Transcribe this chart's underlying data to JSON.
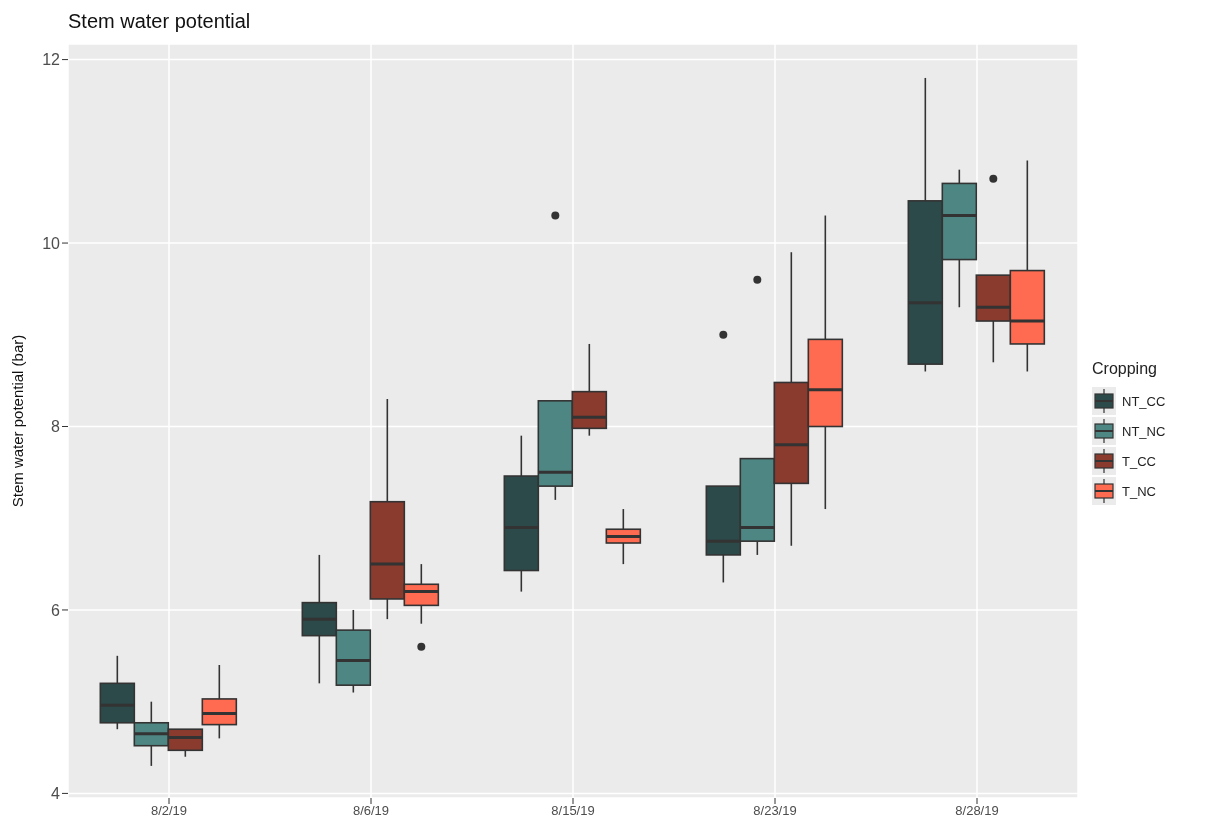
{
  "chart_data": {
    "type": "box",
    "title": "Stem water potential",
    "ylabel": "Stem water potential (bar)",
    "legend_title": "Cropping",
    "categories": [
      "8/2/19",
      "8/6/19",
      "8/15/19",
      "8/23/19",
      "8/28/19"
    ],
    "ylim": [
      3.95,
      12.17
    ],
    "yticks": [
      4,
      6,
      8,
      10,
      12
    ],
    "grid": true,
    "legend": "right",
    "series": [
      {
        "name": "NT_CC",
        "color": "#2d4a4a",
        "boxes": [
          {
            "low": 4.7,
            "q1": 4.77,
            "median": 4.96,
            "q3": 5.2,
            "high": 5.5
          },
          {
            "low": 5.2,
            "q1": 5.72,
            "median": 5.9,
            "q3": 6.08,
            "high": 6.6
          },
          {
            "low": 6.2,
            "q1": 6.43,
            "median": 6.9,
            "q3": 7.46,
            "high": 7.9
          },
          {
            "low": 6.3,
            "q1": 6.6,
            "median": 6.75,
            "q3": 7.35,
            "high": 7.35,
            "outliers": [
              9.0
            ]
          },
          {
            "low": 8.6,
            "q1": 8.68,
            "median": 9.35,
            "q3": 10.46,
            "high": 11.8
          }
        ]
      },
      {
        "name": "NT_NC",
        "color": "#4e8683",
        "boxes": [
          {
            "low": 4.3,
            "q1": 4.52,
            "median": 4.65,
            "q3": 4.77,
            "high": 5.0
          },
          {
            "low": 5.1,
            "q1": 5.18,
            "median": 5.45,
            "q3": 5.78,
            "high": 6.0
          },
          {
            "low": 7.2,
            "q1": 7.35,
            "median": 7.5,
            "q3": 8.28,
            "high": 8.28,
            "outliers": [
              10.3
            ]
          },
          {
            "low": 6.6,
            "q1": 6.75,
            "median": 6.9,
            "q3": 7.65,
            "high": 7.65,
            "outliers": [
              9.6
            ]
          },
          {
            "low": 9.3,
            "q1": 9.82,
            "median": 10.3,
            "q3": 10.65,
            "high": 10.8
          }
        ]
      },
      {
        "name": "T_CC",
        "color": "#8b3a2e",
        "boxes": [
          {
            "low": 4.4,
            "q1": 4.47,
            "median": 4.61,
            "q3": 4.7,
            "high": 4.7
          },
          {
            "low": 5.9,
            "q1": 6.12,
            "median": 6.5,
            "q3": 7.18,
            "high": 8.3
          },
          {
            "low": 7.9,
            "q1": 7.98,
            "median": 8.1,
            "q3": 8.38,
            "high": 8.9
          },
          {
            "low": 6.7,
            "q1": 7.38,
            "median": 7.8,
            "q3": 8.48,
            "high": 9.9
          },
          {
            "low": 8.7,
            "q1": 9.15,
            "median": 9.3,
            "q3": 9.65,
            "high": 9.65,
            "outliers": [
              10.7
            ]
          }
        ]
      },
      {
        "name": "T_NC",
        "color": "#ff6b50",
        "boxes": [
          {
            "low": 4.6,
            "q1": 4.75,
            "median": 4.87,
            "q3": 5.03,
            "high": 5.4
          },
          {
            "low": 5.85,
            "q1": 6.05,
            "median": 6.2,
            "q3": 6.28,
            "high": 6.5,
            "outliers": [
              5.6
            ]
          },
          {
            "low": 6.5,
            "q1": 6.73,
            "median": 6.8,
            "q3": 6.88,
            "high": 7.1
          },
          {
            "low": 7.1,
            "q1": 8.0,
            "median": 8.4,
            "q3": 8.95,
            "high": 10.3
          },
          {
            "low": 8.6,
            "q1": 8.9,
            "median": 9.15,
            "q3": 9.7,
            "high": 10.9
          }
        ]
      }
    ]
  }
}
